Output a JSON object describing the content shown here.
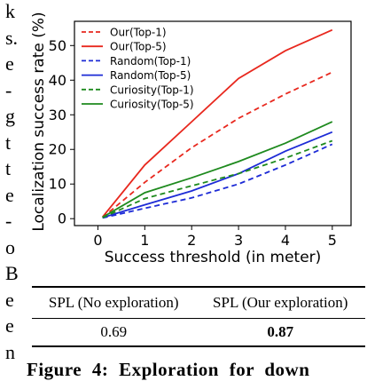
{
  "left_column_fragments": [
    "k",
    "s.",
    "e",
    "-",
    "g",
    "t",
    "t",
    "e",
    "-",
    "o",
    "B",
    "e",
    "e",
    "n"
  ],
  "chart_data": {
    "type": "line",
    "xlabel": "Success threshold (in meter)",
    "ylabel": "Localization success rate (%)",
    "xlim": [
      -0.5,
      5.4
    ],
    "ylim": [
      -2,
      57
    ],
    "xticks": [
      0,
      1,
      2,
      3,
      4,
      5
    ],
    "yticks": [
      0,
      10,
      20,
      30,
      40,
      50
    ],
    "grid": false,
    "legend_position": "top-left",
    "x": [
      0.1,
      1,
      2,
      3,
      4,
      5
    ],
    "series": [
      {
        "name": "Our(Top-1)",
        "color": "#e8281e",
        "dash": "dashed",
        "values": [
          0.3,
          10.5,
          20.5,
          29,
          36,
          42.3
        ]
      },
      {
        "name": "Our(Top-5)",
        "color": "#e8281e",
        "dash": "solid",
        "values": [
          0.5,
          15.5,
          28,
          40.5,
          48.5,
          54.5
        ]
      },
      {
        "name": "Random(Top-1)",
        "color": "#1d2bd6",
        "dash": "dashed",
        "values": [
          0.2,
          3,
          6,
          10,
          15.5,
          21.5
        ]
      },
      {
        "name": "Random(Top-5)",
        "color": "#1d2bd6",
        "dash": "solid",
        "values": [
          0.3,
          4,
          8,
          13,
          19.5,
          25
        ]
      },
      {
        "name": "Curiosity(Top-1)",
        "color": "#1e8a1e",
        "dash": "dashed",
        "values": [
          0.3,
          5.8,
          9.5,
          13,
          17.5,
          22.5
        ]
      },
      {
        "name": "Curiosity(Top-5)",
        "color": "#1e8a1e",
        "dash": "solid",
        "values": [
          0.4,
          7.5,
          11.8,
          16.5,
          21.8,
          28
        ]
      }
    ]
  },
  "table": {
    "headers": [
      "SPL (No exploration)",
      "SPL (Our exploration)"
    ],
    "rows": [
      [
        "0.69",
        "0.87"
      ]
    ],
    "bold_cells": [
      "0.87"
    ]
  },
  "caption": "Figure 4: Exploration for down"
}
